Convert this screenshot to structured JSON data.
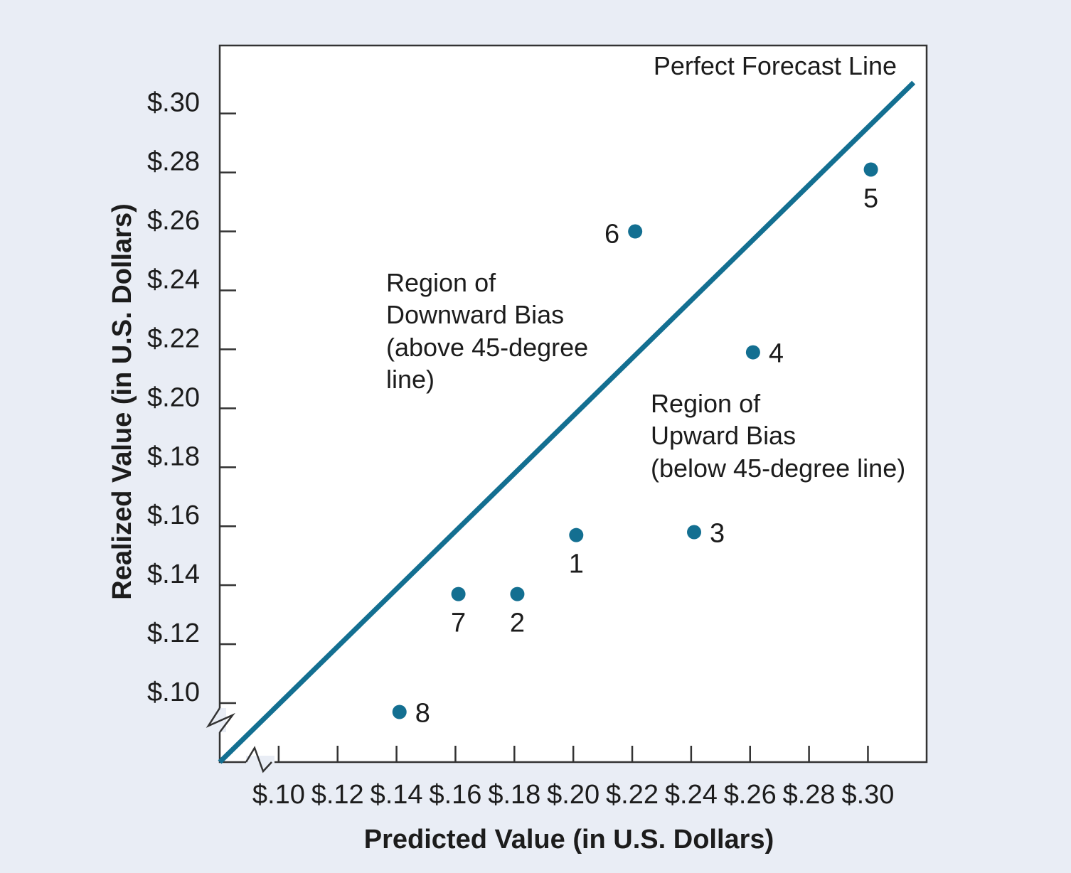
{
  "chart_data": {
    "type": "scatter",
    "title": "",
    "xlabel": "Predicted Value (in U.S. Dollars)",
    "ylabel": "Realized Value (in U.S. Dollars)",
    "xlim": [
      0.08,
      0.31
    ],
    "ylim": [
      0.08,
      0.31
    ],
    "x_ticks": [
      {
        "value": 0.1,
        "label": "$.10"
      },
      {
        "value": 0.12,
        "label": "$.12"
      },
      {
        "value": 0.14,
        "label": "$.14"
      },
      {
        "value": 0.16,
        "label": "$.16"
      },
      {
        "value": 0.18,
        "label": "$.18"
      },
      {
        "value": 0.2,
        "label": "$.20"
      },
      {
        "value": 0.22,
        "label": "$.22"
      },
      {
        "value": 0.24,
        "label": "$.24"
      },
      {
        "value": 0.26,
        "label": "$.26"
      },
      {
        "value": 0.28,
        "label": "$.28"
      },
      {
        "value": 0.3,
        "label": "$.30"
      }
    ],
    "y_ticks": [
      {
        "value": 0.1,
        "label": "$.10"
      },
      {
        "value": 0.12,
        "label": "$.12"
      },
      {
        "value": 0.14,
        "label": "$.14"
      },
      {
        "value": 0.16,
        "label": "$.16"
      },
      {
        "value": 0.18,
        "label": "$.18"
      },
      {
        "value": 0.2,
        "label": "$.20"
      },
      {
        "value": 0.22,
        "label": "$.22"
      },
      {
        "value": 0.24,
        "label": "$.24"
      },
      {
        "value": 0.26,
        "label": "$.26"
      },
      {
        "value": 0.28,
        "label": "$.28"
      },
      {
        "value": 0.3,
        "label": "$.30"
      }
    ],
    "points": [
      {
        "label": "1",
        "x": 0.201,
        "y": 0.157,
        "label_position": "below"
      },
      {
        "label": "2",
        "x": 0.181,
        "y": 0.137,
        "label_position": "below"
      },
      {
        "label": "3",
        "x": 0.241,
        "y": 0.158,
        "label_position": "right"
      },
      {
        "label": "4",
        "x": 0.261,
        "y": 0.219,
        "label_position": "right"
      },
      {
        "label": "5",
        "x": 0.301,
        "y": 0.281,
        "label_position": "below"
      },
      {
        "label": "6",
        "x": 0.221,
        "y": 0.26,
        "label_position": "left"
      },
      {
        "label": "7",
        "x": 0.161,
        "y": 0.137,
        "label_position": "below"
      },
      {
        "label": "8",
        "x": 0.141,
        "y": 0.097,
        "label_position": "right"
      }
    ],
    "reference_line": {
      "label": "Perfect Forecast Line",
      "from": [
        0.08,
        0.08
      ],
      "to": [
        0.3155,
        0.3105
      ]
    },
    "annotations": [
      {
        "id": "downward-bias",
        "lines": [
          "Region of",
          "Downward Bias",
          "(above 45-degree",
          "line)"
        ]
      },
      {
        "id": "upward-bias",
        "lines": [
          "Region of",
          "Upward Bias",
          "(below 45-degree line)"
        ]
      }
    ],
    "axis_breaks": true,
    "grid": false,
    "legend": "none",
    "colors": {
      "accent": "#136f91",
      "text": "#1c1c1c",
      "axis": "#333333",
      "background": "#e9edf5",
      "plot_background": "#ffffff"
    }
  }
}
